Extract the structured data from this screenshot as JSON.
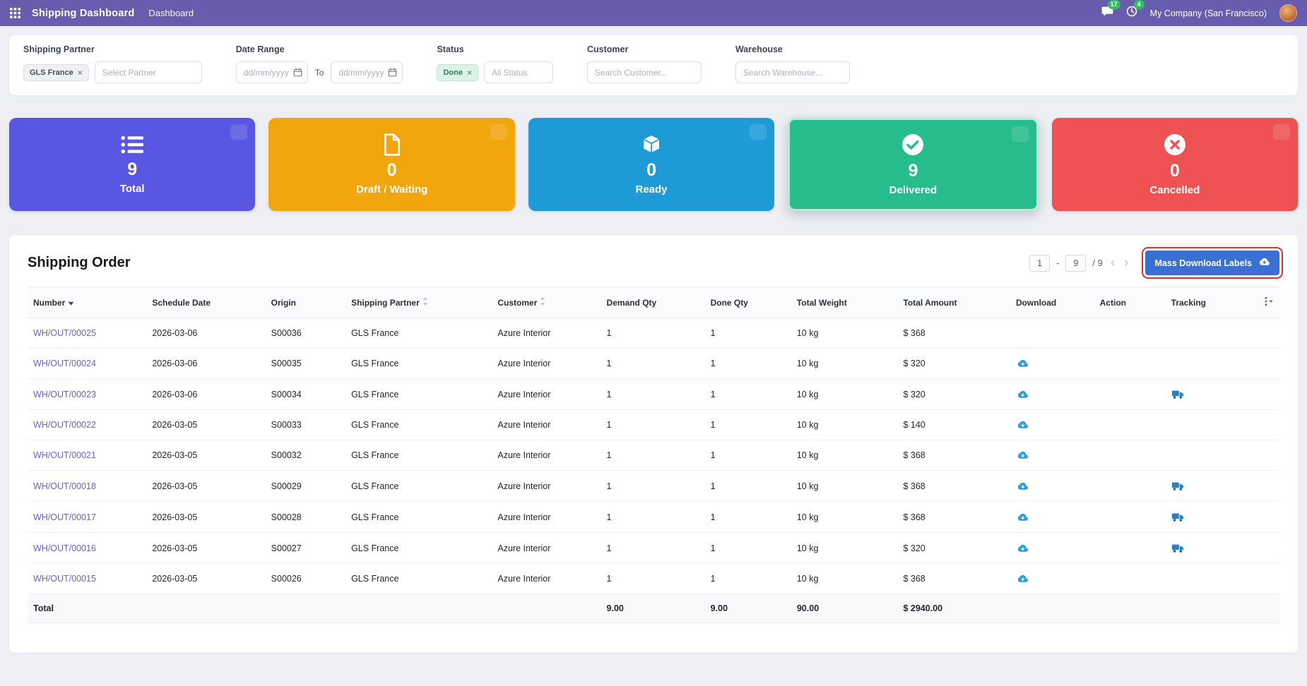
{
  "colors": {
    "topbar": "#675CAD",
    "page_background": "#edeff5",
    "card_total": "#5956E3",
    "card_draft": "#F2A60D",
    "card_ready": "#1E9BD7",
    "card_delivered": "#27BC8C",
    "card_cancelled": "#EE5253",
    "primary_button": "#3A6FD4",
    "highlight_annotation": "#E03131",
    "link": "#6A63B8",
    "download_icon": "#2D9CDB",
    "badge_green": "#2EBF63"
  },
  "topbar": {
    "app_title": "Shipping Dashboard",
    "menu_dashboard": "Dashboard",
    "messages_badge": "17",
    "activities_badge": "4",
    "company": "My Company (San Francisco)",
    "icons": [
      "apps-grid-icon",
      "messages-icon",
      "activities-clock-icon",
      "user-avatar"
    ]
  },
  "filters": {
    "shipping_partner": {
      "label": "Shipping Partner",
      "tag": "GLS France",
      "placeholder": "Select Partner"
    },
    "date_range": {
      "label": "Date Range",
      "from_placeholder": "dd/mm/yyyy",
      "to_label": "To",
      "to_placeholder": "dd/mm/yyyy"
    },
    "status": {
      "label": "Status",
      "tag": "Done",
      "placeholder": "All Status"
    },
    "customer": {
      "label": "Customer",
      "placeholder": "Search Customer..."
    },
    "warehouse": {
      "label": "Warehouse",
      "placeholder": "Search Warehouse..."
    }
  },
  "stat_cards": [
    {
      "id": "total",
      "value": "9",
      "label": "Total",
      "color": "#5956E3",
      "icon": "list-icon",
      "selected": false
    },
    {
      "id": "draft-waiting",
      "value": "0",
      "label": "Draft / Waiting",
      "color": "#F2A60D",
      "icon": "file-icon",
      "selected": false
    },
    {
      "id": "ready",
      "value": "0",
      "label": "Ready",
      "color": "#1E9BD7",
      "icon": "box-icon",
      "selected": false
    },
    {
      "id": "delivered",
      "value": "9",
      "label": "Delivered",
      "color": "#27BC8C",
      "icon": "check-circle-icon",
      "selected": true
    },
    {
      "id": "cancelled",
      "value": "0",
      "label": "Cancelled",
      "color": "#EE5253",
      "icon": "x-circle-icon",
      "selected": false
    }
  ],
  "orders": {
    "title": "Shipping Order",
    "pagination": {
      "start": "1",
      "dash": "-",
      "end": "9",
      "total": "/ 9"
    },
    "mass_download_label": "Mass Download Labels",
    "columns": [
      {
        "label": "Number",
        "sort": "down"
      },
      {
        "label": "Schedule Date",
        "sort": null
      },
      {
        "label": "Origin",
        "sort": null
      },
      {
        "label": "Shipping Partner",
        "sort": "both"
      },
      {
        "label": "Customer",
        "sort": "both"
      },
      {
        "label": "Demand Qty",
        "sort": null
      },
      {
        "label": "Done Qty",
        "sort": null
      },
      {
        "label": "Total Weight",
        "sort": null
      },
      {
        "label": "Total Amount",
        "sort": null
      },
      {
        "label": "Download",
        "sort": null
      },
      {
        "label": "Action",
        "sort": null
      },
      {
        "label": "Tracking",
        "sort": null
      }
    ],
    "rows": [
      {
        "number": "WH/OUT/00025",
        "schedule_date": "2026-03-06",
        "origin": "S00036",
        "partner": "GLS France",
        "customer": "Azure Interior",
        "demand_qty": "1",
        "done_qty": "1",
        "weight": "10 kg",
        "amount": "$ 368",
        "download": false,
        "tracking": false
      },
      {
        "number": "WH/OUT/00024",
        "schedule_date": "2026-03-06",
        "origin": "S00035",
        "partner": "GLS France",
        "customer": "Azure Interior",
        "demand_qty": "1",
        "done_qty": "1",
        "weight": "10 kg",
        "amount": "$ 320",
        "download": true,
        "tracking": false
      },
      {
        "number": "WH/OUT/00023",
        "schedule_date": "2026-03-06",
        "origin": "S00034",
        "partner": "GLS France",
        "customer": "Azure Interior",
        "demand_qty": "1",
        "done_qty": "1",
        "weight": "10 kg",
        "amount": "$ 320",
        "download": true,
        "tracking": true
      },
      {
        "number": "WH/OUT/00022",
        "schedule_date": "2026-03-05",
        "origin": "S00033",
        "partner": "GLS France",
        "customer": "Azure Interior",
        "demand_qty": "1",
        "done_qty": "1",
        "weight": "10 kg",
        "amount": "$ 140",
        "download": true,
        "tracking": false
      },
      {
        "number": "WH/OUT/00021",
        "schedule_date": "2026-03-05",
        "origin": "S00032",
        "partner": "GLS France",
        "customer": "Azure Interior",
        "demand_qty": "1",
        "done_qty": "1",
        "weight": "10 kg",
        "amount": "$ 368",
        "download": true,
        "tracking": false
      },
      {
        "number": "WH/OUT/00018",
        "schedule_date": "2026-03-05",
        "origin": "S00029",
        "partner": "GLS France",
        "customer": "Azure Interior",
        "demand_qty": "1",
        "done_qty": "1",
        "weight": "10 kg",
        "amount": "$ 368",
        "download": true,
        "tracking": true
      },
      {
        "number": "WH/OUT/00017",
        "schedule_date": "2026-03-05",
        "origin": "S00028",
        "partner": "GLS France",
        "customer": "Azure Interior",
        "demand_qty": "1",
        "done_qty": "1",
        "weight": "10 kg",
        "amount": "$ 368",
        "download": true,
        "tracking": true
      },
      {
        "number": "WH/OUT/00016",
        "schedule_date": "2026-03-05",
        "origin": "S00027",
        "partner": "GLS France",
        "customer": "Azure Interior",
        "demand_qty": "1",
        "done_qty": "1",
        "weight": "10 kg",
        "amount": "$ 320",
        "download": true,
        "tracking": true
      },
      {
        "number": "WH/OUT/00015",
        "schedule_date": "2026-03-05",
        "origin": "S00026",
        "partner": "GLS France",
        "customer": "Azure Interior",
        "demand_qty": "1",
        "done_qty": "1",
        "weight": "10 kg",
        "amount": "$ 368",
        "download": true,
        "tracking": false
      }
    ],
    "footer": {
      "label": "Total",
      "demand": "9.00",
      "done": "9.00",
      "weight": "90.00",
      "amount": "$ 2940.00"
    }
  }
}
